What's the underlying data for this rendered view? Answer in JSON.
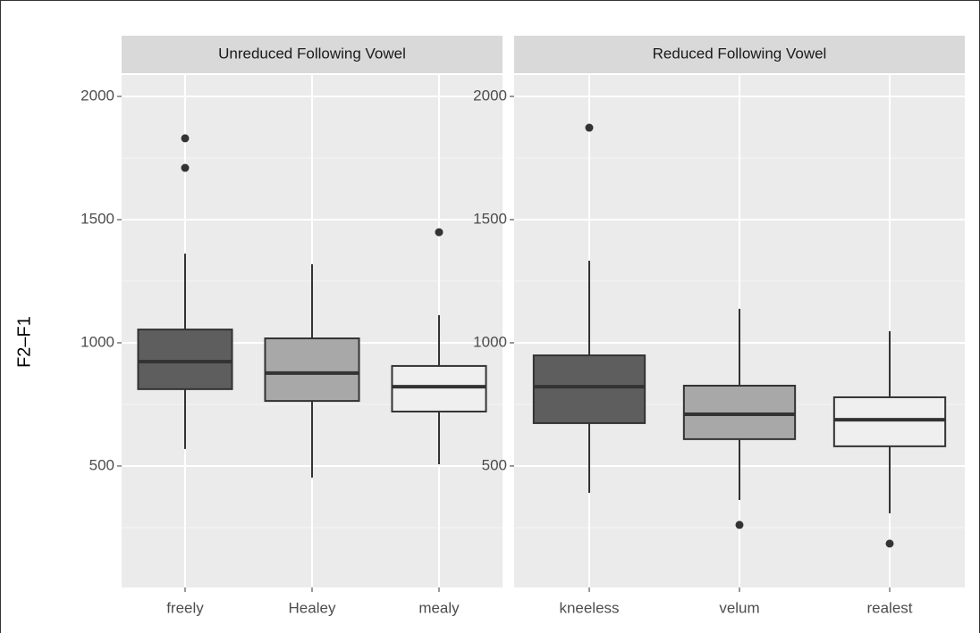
{
  "ylabel": "F2–F1",
  "chart_data": [
    {
      "type": "box",
      "title": "Unreduced Following Vowel",
      "categories": [
        "freely",
        "Healey",
        "mealy"
      ],
      "colors": [
        "#5e5e5e",
        "#a8a8a8",
        "#efefef"
      ],
      "boxes": [
        {
          "min": 569,
          "q1": 812,
          "median": 924,
          "q3": 1054,
          "max": 1362,
          "outliers": [
            1830,
            1710
          ]
        },
        {
          "min": 453,
          "q1": 764,
          "median": 877,
          "q3": 1018,
          "max": 1319,
          "outliers": []
        },
        {
          "min": 507,
          "q1": 721,
          "median": 822,
          "q3": 906,
          "max": 1112,
          "outliers": [
            1449
          ]
        }
      ],
      "ylim": [
        7,
        2087
      ],
      "yticks": [
        500,
        1000,
        1500,
        2000
      ],
      "minor_yticks": [
        250,
        750,
        1250,
        1750
      ],
      "grid": true
    },
    {
      "type": "box",
      "title": "Reduced Following Vowel",
      "categories": [
        "kneeless",
        "velum",
        "realest"
      ],
      "colors": [
        "#5e5e5e",
        "#a8a8a8",
        "#efefef"
      ],
      "boxes": [
        {
          "min": 391,
          "q1": 674,
          "median": 822,
          "q3": 949,
          "max": 1333,
          "outliers": [
            1873
          ]
        },
        {
          "min": 362,
          "q1": 609,
          "median": 710,
          "q3": 826,
          "max": 1138,
          "outliers": [
            261
          ]
        },
        {
          "min": 308,
          "q1": 580,
          "median": 688,
          "q3": 779,
          "max": 1047,
          "outliers": [
            185
          ]
        }
      ],
      "ylim": [
        7,
        2087
      ],
      "yticks": [
        500,
        1000,
        1500,
        2000
      ],
      "minor_yticks": [
        250,
        750,
        1250,
        1750
      ],
      "grid": true
    }
  ]
}
